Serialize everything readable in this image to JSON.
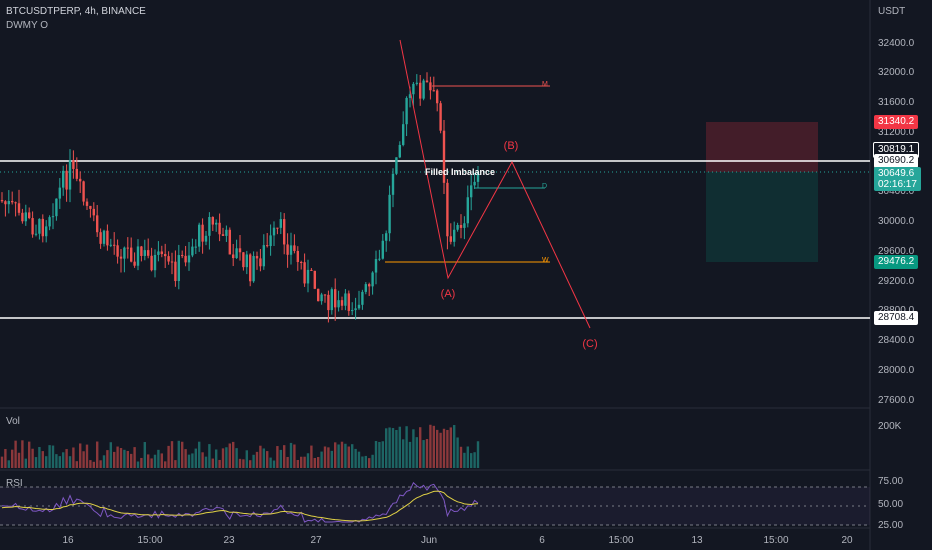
{
  "header": {
    "symbol": "BTCUSDTPERP, 4h, BINANCE",
    "indicator": "DWMY O",
    "currency": "USDT"
  },
  "volume_pane": {
    "label": "Vol",
    "tick": "200K"
  },
  "rsi_pane": {
    "label": "RSI",
    "ticks": [
      "75.00",
      "50.00",
      "25.00"
    ]
  },
  "price_axis": {
    "ticks": [
      "32400.0",
      "32000.0",
      "31600.0",
      "31200.0",
      "30400.0",
      "30000.0",
      "29600.0",
      "29200.0",
      "28800.0",
      "28400.0",
      "28000.0",
      "27600.0"
    ]
  },
  "price_badges": {
    "stop": "31340.2",
    "level_top": "30819.1",
    "level_mid": "30690.2",
    "last_price": "30649.6",
    "countdown": "02:16:17",
    "target": "29476.2",
    "level_bottom": "28708.4"
  },
  "time_axis": {
    "ticks": [
      "16",
      "15:00",
      "23",
      "27",
      "Jun",
      "6",
      "15:00",
      "13",
      "15:00",
      "20"
    ]
  },
  "annotations": {
    "imbalance": "Filled Imbalance",
    "wave_a": "(A)",
    "wave_b": "(B)",
    "wave_c": "(C)",
    "tag_m": "M",
    "tag_d": "D",
    "tag_w": "W"
  },
  "colors": {
    "background": "#131722",
    "up": "#26a69a",
    "down": "#ef5350",
    "wave": "#f23645",
    "rsi_line": "#7e57c2",
    "rsi_ma": "#e0d146",
    "level_line": "#ffffff",
    "stop_badge": "#f23645",
    "target_badge": "#089981"
  }
}
